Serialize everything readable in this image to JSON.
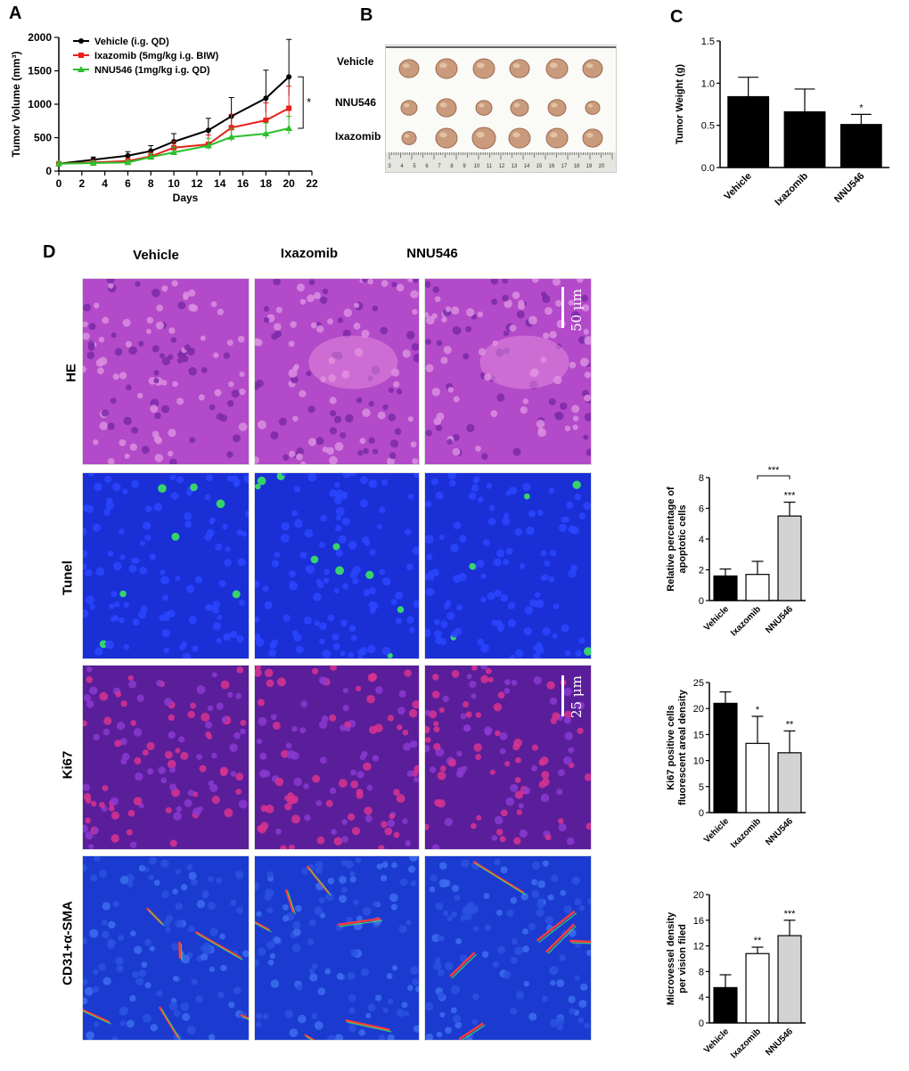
{
  "panel_letters": {
    "a": "A",
    "b": "B",
    "c": "C",
    "d": "D"
  },
  "photo": {
    "row_labels": [
      "Vehicle",
      "NNU546",
      "Ixazomib"
    ],
    "ruler_ticks": [
      "3",
      "4",
      "5",
      "6",
      "7",
      "8",
      "9",
      "10",
      "11",
      "12",
      "13",
      "14",
      "15",
      "16",
      "17",
      "18",
      "19",
      "20"
    ]
  },
  "micro": {
    "col_heads": [
      "Vehicle",
      "Ixazomib",
      "NNU546"
    ],
    "row_labels": [
      "HE",
      "Tunel",
      "Ki67",
      "CD31+α-SMA"
    ],
    "scale_he": "50 μm",
    "scale_ki67": "25 μm",
    "colors": {
      "he": "#b34ac9",
      "tunel": "#1a2fd6",
      "ki67": "#5a1e9a",
      "cd31": "#1b3bd0"
    }
  },
  "chart_data": [
    {
      "id": "A",
      "type": "line",
      "xlabel": "Days",
      "ylabel": "Tumor Volume (mm³)",
      "xlim": [
        0,
        22
      ],
      "ylim": [
        0,
        2000
      ],
      "xticks": [
        0,
        2,
        4,
        6,
        8,
        10,
        12,
        14,
        16,
        18,
        20,
        22
      ],
      "yticks": [
        0,
        500,
        1000,
        1500,
        2000
      ],
      "x": [
        0,
        3,
        6,
        8,
        10,
        13,
        15,
        18,
        20
      ],
      "series": [
        {
          "name": "Vehicle (i.g. QD)",
          "color": "#000000",
          "marker": "circle",
          "values": [
            110,
            170,
            230,
            300,
            440,
            610,
            820,
            1090,
            1410
          ],
          "errors": [
            30,
            40,
            60,
            80,
            120,
            180,
            280,
            420,
            560
          ]
        },
        {
          "name": "Ixazomib (5mg/kg i.g. BIW)",
          "color": "#e8201c",
          "marker": "square",
          "values": [
            110,
            130,
            150,
            220,
            350,
            400,
            650,
            760,
            940
          ],
          "errors": [
            25,
            30,
            40,
            60,
            90,
            140,
            200,
            260,
            330
          ]
        },
        {
          "name": "NNU546 (1mg/kg i.g. QD)",
          "color": "#2cbf2c",
          "marker": "triangle",
          "values": [
            110,
            120,
            130,
            210,
            280,
            380,
            510,
            560,
            640
          ],
          "errors": [
            25,
            30,
            30,
            50,
            80,
            110,
            130,
            160,
            180
          ]
        }
      ],
      "annotation": "*"
    },
    {
      "id": "C",
      "type": "bar",
      "ylabel": "Tumor Weight (g)",
      "ylim": [
        0,
        1.5
      ],
      "yticks": [
        "0.0",
        "0.5",
        "1.0",
        "1.5"
      ],
      "categories": [
        "Vehicle",
        "Ixazomib",
        "NNU546"
      ],
      "values": [
        0.84,
        0.66,
        0.51
      ],
      "errors": [
        0.23,
        0.27,
        0.12
      ],
      "colors": [
        "#000000",
        "#000000",
        "#000000"
      ],
      "sig": [
        "",
        "",
        "*"
      ]
    },
    {
      "id": "D-tunel",
      "type": "bar",
      "ylabel": [
        "Relative percentage of",
        "apoptotic cells"
      ],
      "ylim": [
        0,
        8
      ],
      "yticks": [
        "0",
        "2",
        "4",
        "6",
        "8"
      ],
      "categories": [
        "Vehicle",
        "Ixazomib",
        "NNU546"
      ],
      "values": [
        1.6,
        1.7,
        5.5
      ],
      "errors": [
        0.45,
        0.85,
        0.9
      ],
      "colors": [
        "#000000",
        "#ffffff",
        "#d3d3d3"
      ],
      "sig": [
        "",
        "",
        "***"
      ],
      "bracket": "***"
    },
    {
      "id": "D-ki67",
      "type": "bar",
      "ylabel": [
        "Ki67 positive cells",
        "fluorescent areal density"
      ],
      "ylim": [
        0,
        25
      ],
      "yticks": [
        "0",
        "5",
        "10",
        "15",
        "20",
        "25"
      ],
      "categories": [
        "Vehicle",
        "Ixazomib",
        "NNU546"
      ],
      "values": [
        21.0,
        13.3,
        11.5
      ],
      "errors": [
        2.2,
        5.2,
        4.2
      ],
      "colors": [
        "#000000",
        "#ffffff",
        "#d3d3d3"
      ],
      "sig": [
        "",
        "*",
        "**"
      ]
    },
    {
      "id": "D-cd31",
      "type": "bar",
      "ylabel": [
        "Microvessel density",
        "per vision filed"
      ],
      "ylim": [
        0,
        20
      ],
      "yticks": [
        "0",
        "4",
        "8",
        "12",
        "16",
        "20"
      ],
      "categories": [
        "Vehicle",
        "Ixazomib",
        "NNU546"
      ],
      "values": [
        5.5,
        10.8,
        13.6
      ],
      "errors": [
        2.0,
        1.0,
        2.4
      ],
      "colors": [
        "#000000",
        "#ffffff",
        "#d3d3d3"
      ],
      "sig": [
        "",
        "**",
        "***"
      ]
    }
  ]
}
